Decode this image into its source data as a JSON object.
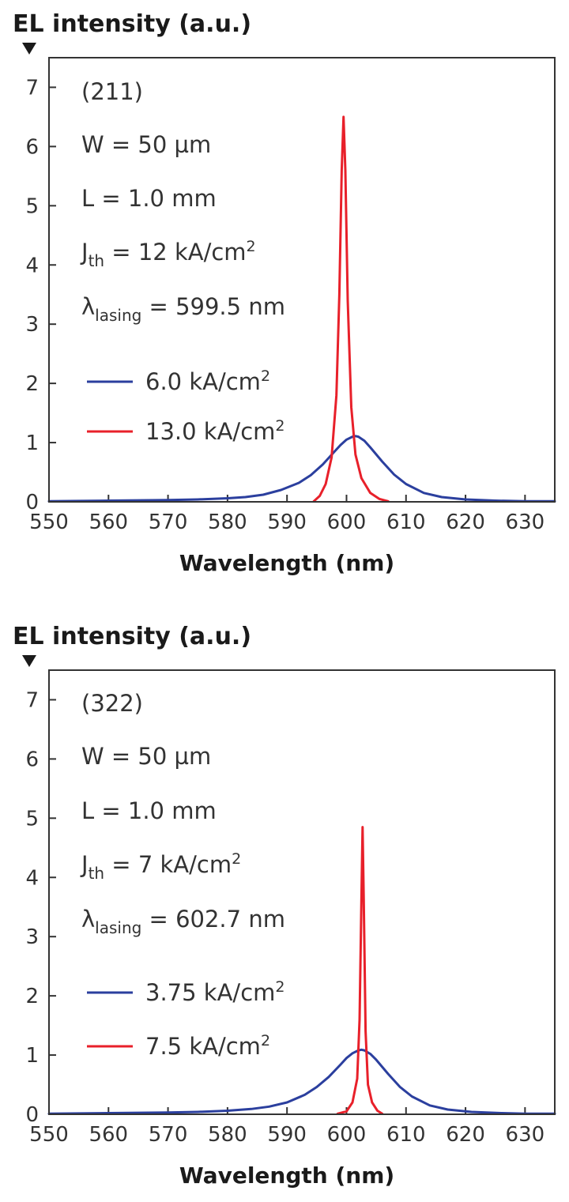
{
  "colors": {
    "low": "#2b3f9e",
    "high": "#e8202a",
    "axis": "#333333"
  },
  "chart_data": [
    {
      "type": "line",
      "title": "",
      "ylabel": "EL intensity (a.u.)",
      "xlabel": "Wavelength (nm)",
      "xlim": [
        550,
        635
      ],
      "ylim": [
        0,
        7.5
      ],
      "xticks": [
        550,
        560,
        570,
        580,
        590,
        600,
        610,
        620,
        630
      ],
      "yticks": [
        0,
        1,
        2,
        3,
        4,
        5,
        6,
        7
      ],
      "grid": false,
      "legend_position": "left",
      "annotations": {
        "label": "(211)",
        "w_text": "W = 50 µm",
        "l_text": "L = 1.0 mm",
        "j_sym": "J",
        "j_sub": "th",
        "j_val": " = 12 kA/cm",
        "j_sup": "2",
        "lam_sym": "λ",
        "lam_sub": "lasing",
        "lam_val": " = 599.5 nm"
      },
      "series": [
        {
          "label_text": "6.0 kA/cm",
          "label_sup": "2",
          "color": "#2b3f9e",
          "x": [
            550,
            560,
            570,
            575,
            580,
            583,
            586,
            589,
            592,
            594,
            596,
            598,
            599,
            600,
            601,
            601.5,
            602,
            603,
            604,
            606,
            608,
            610,
            613,
            616,
            620,
            625,
            630,
            635
          ],
          "y": [
            0.01,
            0.02,
            0.03,
            0.04,
            0.06,
            0.08,
            0.12,
            0.2,
            0.32,
            0.45,
            0.63,
            0.85,
            0.96,
            1.05,
            1.1,
            1.11,
            1.1,
            1.03,
            0.92,
            0.68,
            0.46,
            0.3,
            0.15,
            0.08,
            0.04,
            0.02,
            0.01,
            0.01
          ]
        },
        {
          "label_text": "13.0 kA/cm",
          "label_sup": "2",
          "color": "#e8202a",
          "x": [
            594.5,
            595.5,
            596.5,
            597.5,
            598.3,
            598.8,
            599.2,
            599.5,
            599.8,
            600.2,
            600.8,
            601.5,
            602.5,
            604,
            605.5,
            607
          ],
          "y": [
            0.01,
            0.1,
            0.3,
            0.75,
            1.8,
            3.5,
            5.6,
            6.5,
            5.6,
            3.4,
            1.6,
            0.8,
            0.4,
            0.15,
            0.05,
            0.01
          ]
        }
      ]
    },
    {
      "type": "line",
      "title": "",
      "ylabel": "EL intensity (a.u.)",
      "xlabel": "Wavelength (nm)",
      "xlim": [
        550,
        635
      ],
      "ylim": [
        0,
        7.5
      ],
      "xticks": [
        550,
        560,
        570,
        580,
        590,
        600,
        610,
        620,
        630
      ],
      "yticks": [
        0,
        1,
        2,
        3,
        4,
        5,
        6,
        7
      ],
      "grid": false,
      "legend_position": "left",
      "annotations": {
        "label": "(322)",
        "w_text": "W = 50 µm",
        "l_text": "L = 1.0 mm",
        "j_sym": "J",
        "j_sub": "th",
        "j_val": " = 7 kA/cm",
        "j_sup": "2",
        "lam_sym": "λ",
        "lam_sub": "lasing",
        "lam_val": " = 602.7 nm"
      },
      "series": [
        {
          "label_text": "3.75 kA/cm",
          "label_sup": "2",
          "color": "#2b3f9e",
          "x": [
            550,
            560,
            570,
            575,
            580,
            584,
            587,
            590,
            593,
            595,
            597,
            599,
            600,
            601,
            602,
            602.5,
            603,
            604,
            605,
            607,
            609,
            611,
            614,
            617,
            621,
            626,
            630,
            635
          ],
          "y": [
            0.01,
            0.02,
            0.03,
            0.04,
            0.06,
            0.09,
            0.13,
            0.2,
            0.33,
            0.46,
            0.63,
            0.84,
            0.95,
            1.03,
            1.08,
            1.09,
            1.08,
            1.02,
            0.92,
            0.68,
            0.46,
            0.3,
            0.15,
            0.08,
            0.04,
            0.02,
            0.01,
            0.01
          ]
        },
        {
          "label_text": "7.5 kA/cm",
          "label_sup": "2",
          "color": "#e8202a",
          "x": [
            598.5,
            600,
            601,
            601.8,
            602.2,
            602.5,
            602.7,
            602.9,
            603.2,
            603.6,
            604.3,
            605.2,
            606
          ],
          "y": [
            0.01,
            0.05,
            0.2,
            0.6,
            1.6,
            3.6,
            4.85,
            3.6,
            1.4,
            0.5,
            0.2,
            0.06,
            0.01
          ]
        }
      ]
    }
  ]
}
